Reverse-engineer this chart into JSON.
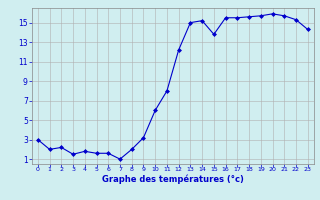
{
  "x": [
    0,
    1,
    2,
    3,
    4,
    5,
    6,
    7,
    8,
    9,
    10,
    11,
    12,
    13,
    14,
    15,
    16,
    17,
    18,
    19,
    20,
    21,
    22,
    23
  ],
  "y": [
    3.0,
    2.0,
    2.2,
    1.5,
    1.8,
    1.6,
    1.6,
    1.0,
    2.0,
    3.2,
    6.0,
    8.0,
    12.2,
    15.0,
    15.2,
    13.8,
    15.5,
    15.5,
    15.6,
    15.7,
    15.9,
    15.7,
    15.3,
    14.3
  ],
  "xlabel": "Graphe des températures (°c)",
  "xticks": [
    0,
    1,
    2,
    3,
    4,
    5,
    6,
    7,
    8,
    9,
    10,
    11,
    12,
    13,
    14,
    15,
    16,
    17,
    18,
    19,
    20,
    21,
    22,
    23
  ],
  "yticks": [
    1,
    3,
    5,
    7,
    9,
    11,
    13,
    15
  ],
  "ylim": [
    0.5,
    16.5
  ],
  "xlim": [
    -0.5,
    23.5
  ],
  "line_color": "#0000cc",
  "marker": "D",
  "marker_size": 2.0,
  "bg_color": "#d0eef0",
  "grid_color": "#b0b0b0",
  "tick_color": "#0000cc",
  "label_color": "#0000cc",
  "figwidth": 3.2,
  "figheight": 2.0,
  "dpi": 100
}
